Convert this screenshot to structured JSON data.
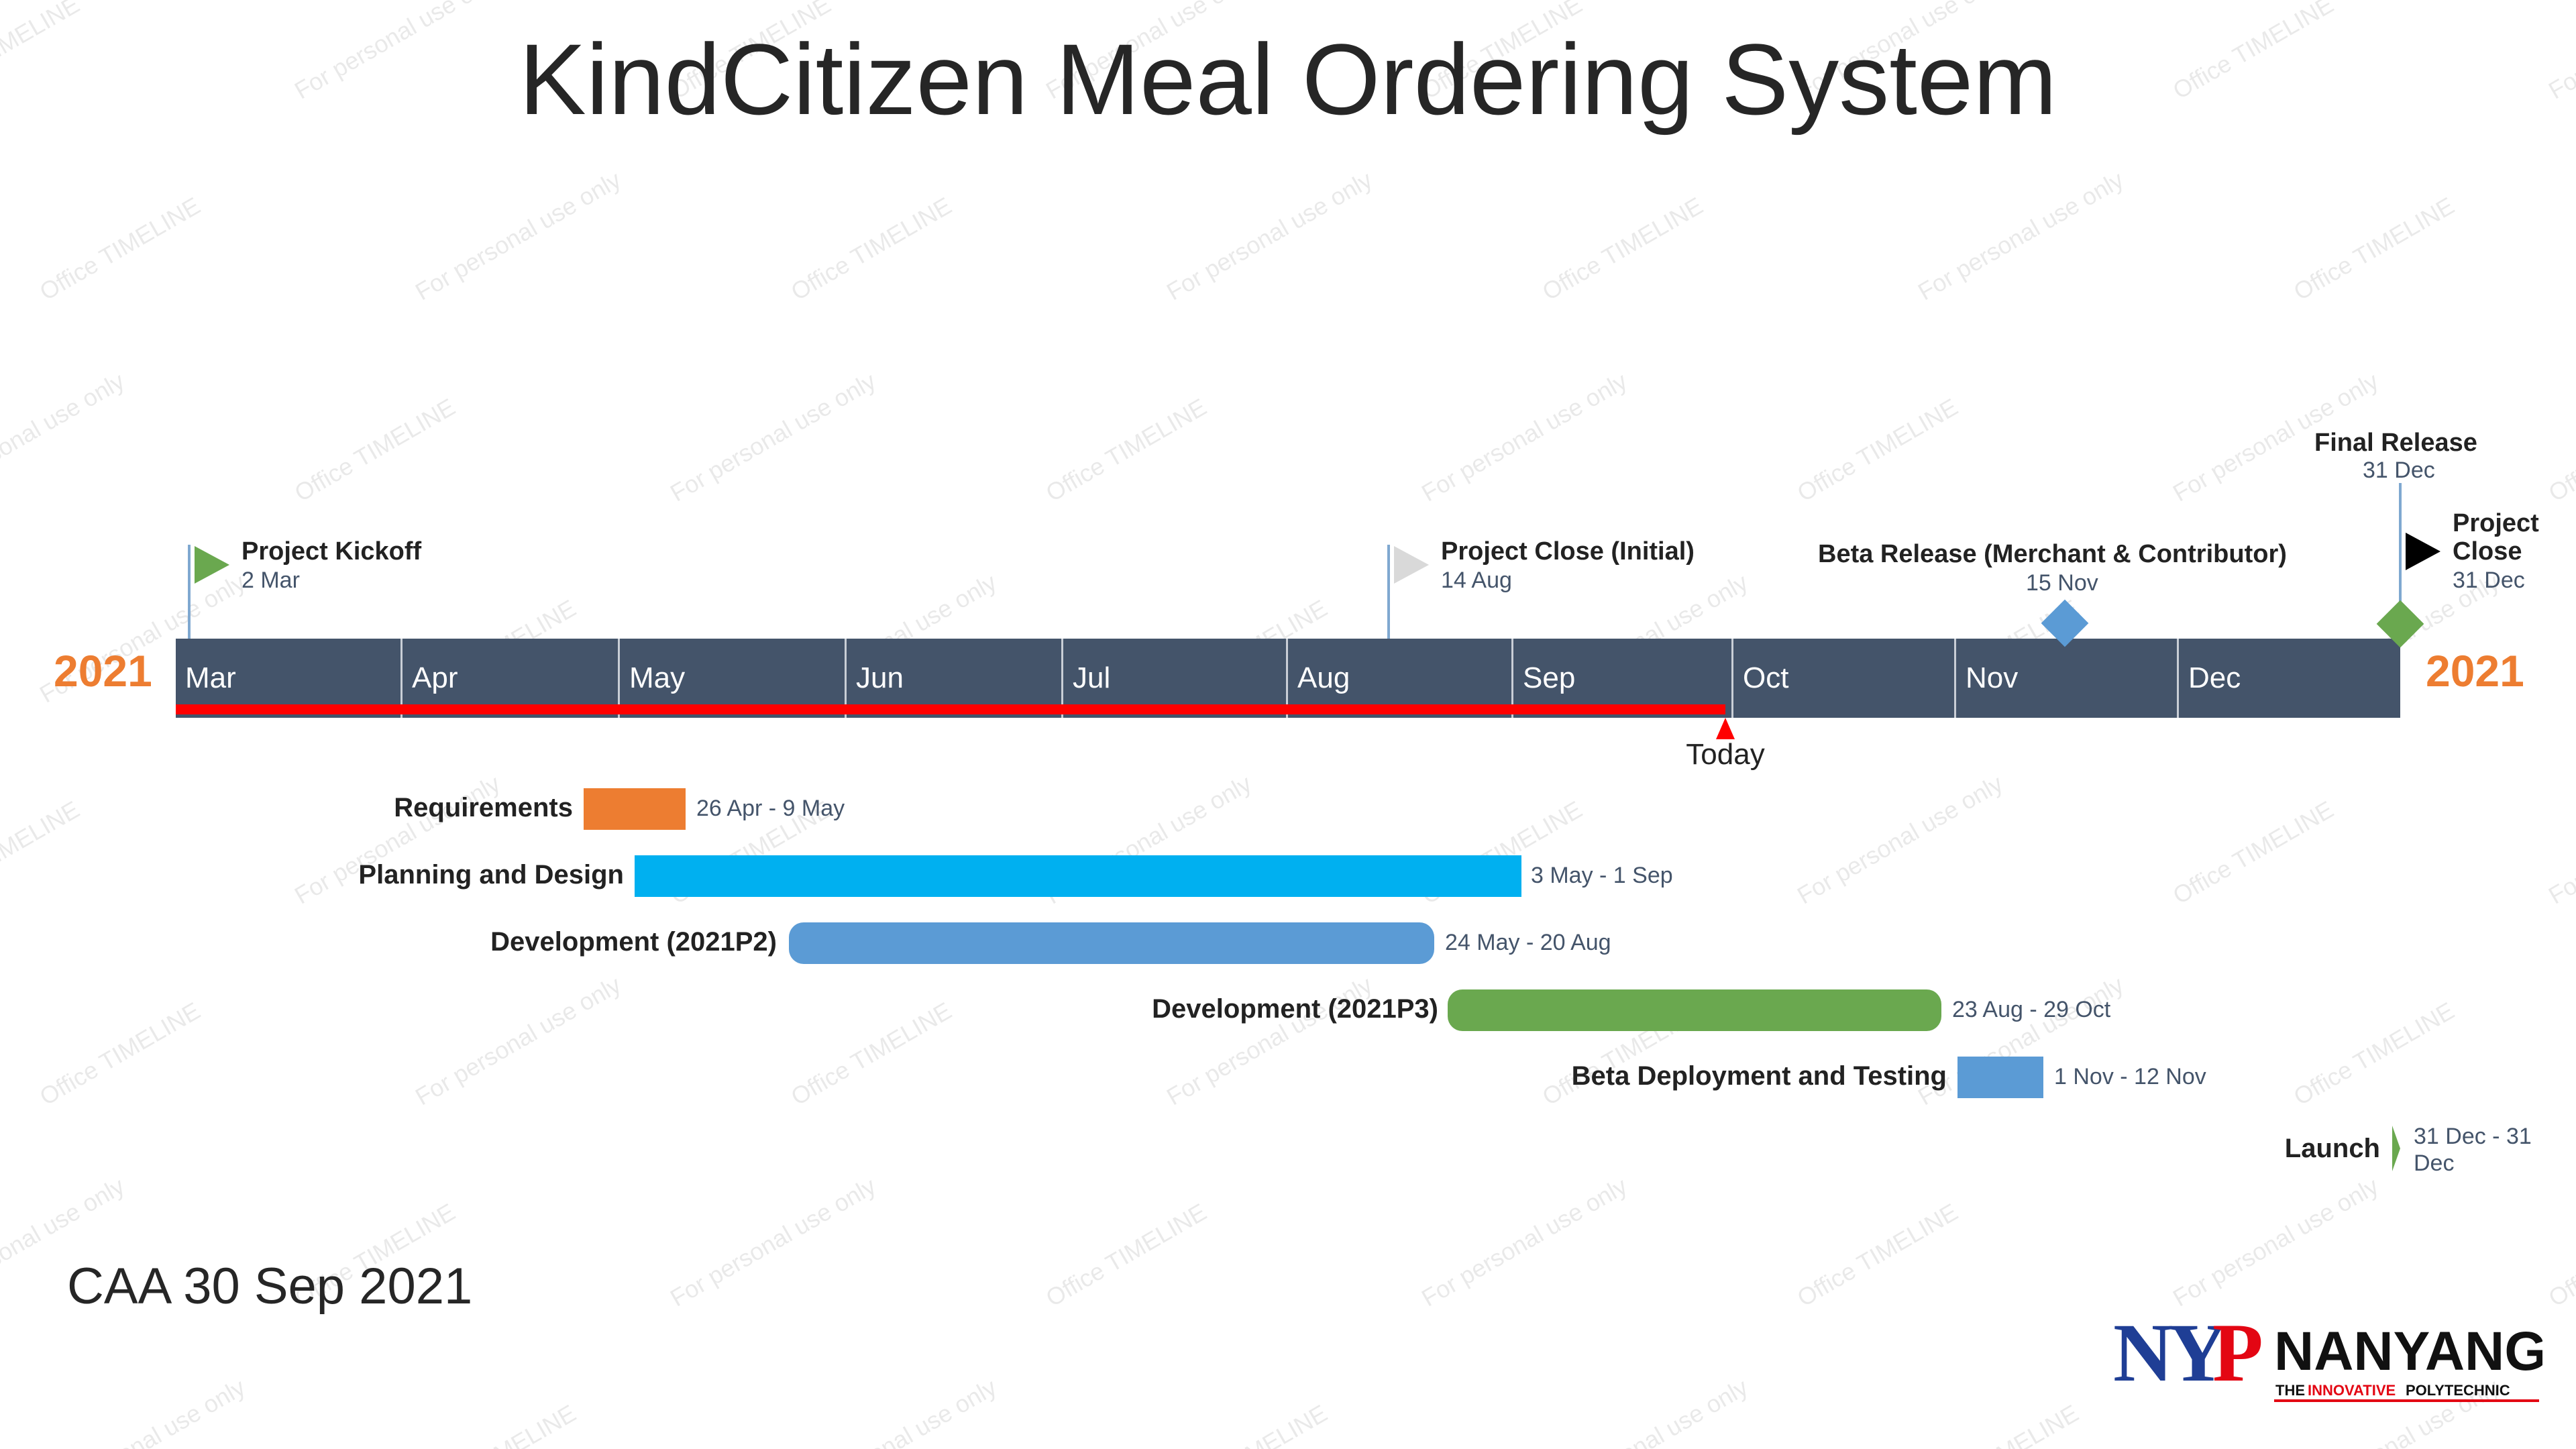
{
  "title": "KindCitizen Meal Ordering System",
  "year_left": "2021",
  "year_right": "2021",
  "months": [
    "Mar",
    "Apr",
    "May",
    "Jun",
    "Jul",
    "Aug",
    "Sep",
    "Oct",
    "Nov",
    "Dec"
  ],
  "today": {
    "label": "Today",
    "date": "30 Sep"
  },
  "milestones": [
    {
      "title": "Project Kickoff",
      "date": "2 Mar",
      "shape": "flag",
      "color": "#6AA84F"
    },
    {
      "title": "Project Close (Initial)",
      "date": "14 Aug",
      "shape": "flag",
      "color": "#D9D9D9"
    },
    {
      "title": "Beta Release (Merchant & Contributor)",
      "date": "15 Nov",
      "shape": "diamond",
      "color": "#5B9BD5"
    },
    {
      "title": "Final Release",
      "date": "31 Dec",
      "shape": "diamond",
      "color": "#6AA84F"
    },
    {
      "title_line1": "Project",
      "title_line2": "Close",
      "date": "31 Dec",
      "shape": "flag",
      "color": "#000000"
    }
  ],
  "tasks": [
    {
      "label": "Requirements",
      "dates": "26 Apr - 9 May",
      "color": "#ED7D31"
    },
    {
      "label": "Planning and Design",
      "dates": "3 May - 1 Sep",
      "color": "#00B0F0"
    },
    {
      "label": "Development (2021P2)",
      "dates": "24 May - 20 Aug",
      "color": "#5B9BD5"
    },
    {
      "label": "Development (2021P3)",
      "dates": "23 Aug - 29 Oct",
      "color": "#6AA84F"
    },
    {
      "label": "Beta Deployment and Testing",
      "dates": "1 Nov - 12 Nov",
      "color": "#5B9BD5"
    },
    {
      "label": "Launch",
      "dates_line1": "31 Dec - 31",
      "dates_line2": "Dec",
      "color": "#6AA84F"
    }
  ],
  "footer": "CAA 30 Sep 2021",
  "logo": {
    "mark": "NYP",
    "name": "NANYANG",
    "tagline_1": "THE",
    "tagline_2": "INNOVATIVE",
    "tagline_3": "POLYTECHNIC"
  },
  "watermarks": [
    "Office TIMELINE",
    "For personal use only"
  ]
}
